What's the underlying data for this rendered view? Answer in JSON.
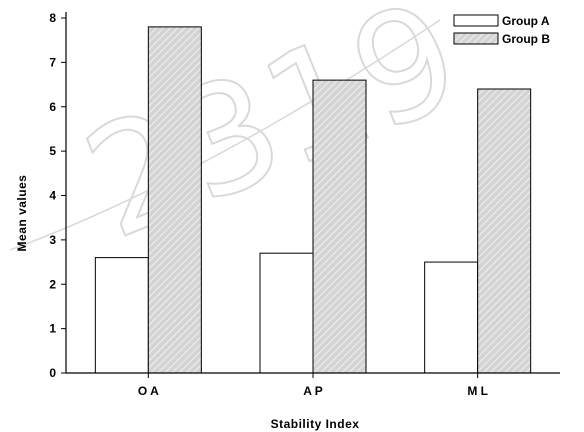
{
  "chart_data": {
    "type": "bar",
    "categories": [
      "OA",
      "AP",
      "ML"
    ],
    "series": [
      {
        "name": "Group A",
        "values": [
          2.6,
          2.7,
          2.5
        ],
        "pattern": "none",
        "color": "#ffffff"
      },
      {
        "name": "Group B",
        "values": [
          7.8,
          6.6,
          6.4
        ],
        "pattern": "diagonal-hatch",
        "color": "#d4d4d4"
      }
    ],
    "title": "",
    "xlabel": "Stability Index",
    "ylabel": "Mean values",
    "ylim": [
      0,
      8
    ],
    "yticks": [
      0,
      1,
      2,
      3,
      4,
      5,
      6,
      7,
      8
    ],
    "grid": false,
    "legend_position": "top-right"
  },
  "watermark": {
    "text": "2319"
  }
}
